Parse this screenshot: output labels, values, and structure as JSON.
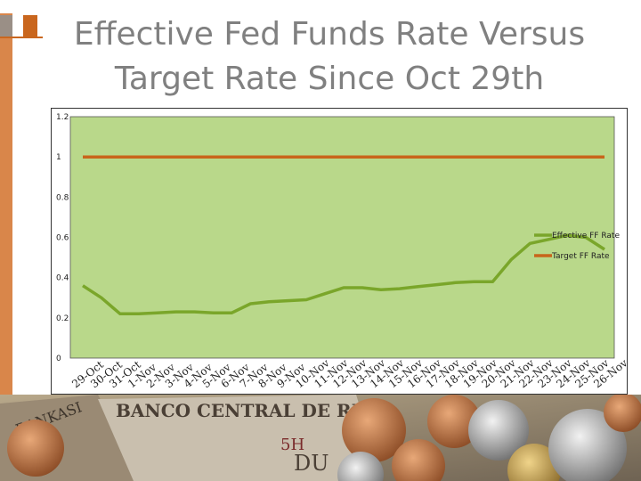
{
  "title_line1": "Effective Fed Funds Rate Versus",
  "title_line2": "Target Rate Since Oct 29th",
  "colors": {
    "accent": "#c9661e",
    "plot_bg": "#b9d88a",
    "effective_line": "#7aa62a",
    "target_line": "#c8651b"
  },
  "background_image_texts": [
    "BANCO CENTRAL DE RES",
    "RANKASI",
    "DU",
    "5H"
  ],
  "chart_data": {
    "type": "line",
    "categories": [
      "29-Oct",
      "30-Oct",
      "31-Oct",
      "1-Nov",
      "2-Nov",
      "3-Nov",
      "4-Nov",
      "5-Nov",
      "6-Nov",
      "7-Nov",
      "8-Nov",
      "9-Nov",
      "10-Nov",
      "11-Nov",
      "12-Nov",
      "13-Nov",
      "14-Nov",
      "15-Nov",
      "16-Nov",
      "17-Nov",
      "18-Nov",
      "19-Nov",
      "20-Nov",
      "21-Nov",
      "22-Nov",
      "23-Nov",
      "24-Nov",
      "25-Nov",
      "26-Nov"
    ],
    "series": [
      {
        "name": "Effective FF Rate",
        "values": [
          0.36,
          0.3,
          0.22,
          0.22,
          0.225,
          0.23,
          0.23,
          0.225,
          0.225,
          0.27,
          0.28,
          0.285,
          0.29,
          0.32,
          0.35,
          0.35,
          0.34,
          0.345,
          0.355,
          0.365,
          0.375,
          0.38,
          0.38,
          0.49,
          0.57,
          0.59,
          0.61,
          0.6,
          0.54
        ]
      },
      {
        "name": "Target FF Rate",
        "values": [
          1,
          1,
          1,
          1,
          1,
          1,
          1,
          1,
          1,
          1,
          1,
          1,
          1,
          1,
          1,
          1,
          1,
          1,
          1,
          1,
          1,
          1,
          1,
          1,
          1,
          1,
          1,
          1,
          1
        ]
      }
    ],
    "ylim": [
      0,
      1.2
    ],
    "yticks": [
      "0",
      "0.2",
      "0.4",
      "0.6",
      "0.8",
      "1",
      "1.2"
    ],
    "grid": false,
    "legend": "right"
  }
}
